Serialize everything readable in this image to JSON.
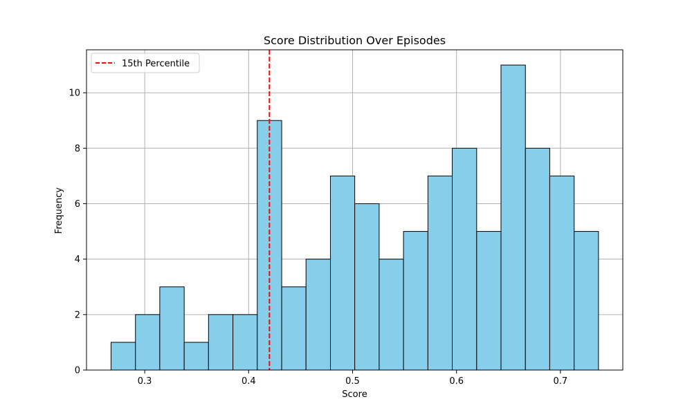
{
  "chart_data": {
    "type": "bar",
    "title": "Score Distribution Over Episodes",
    "xlabel": "Score",
    "ylabel": "Frequency",
    "xlim": [
      0.244,
      0.76
    ],
    "ylim": [
      0,
      11.55
    ],
    "bin_edges": [
      0.2676,
      0.2911,
      0.3145,
      0.338,
      0.3614,
      0.3849,
      0.4083,
      0.4318,
      0.4552,
      0.4787,
      0.5021,
      0.5256,
      0.549,
      0.5725,
      0.5959,
      0.6194,
      0.6428,
      0.6663,
      0.6897,
      0.7132,
      0.7366
    ],
    "values": [
      1,
      2,
      3,
      1,
      2,
      2,
      9,
      3,
      4,
      7,
      6,
      4,
      5,
      7,
      8,
      5,
      11,
      8,
      7,
      5
    ],
    "x_ticks": [
      0.3,
      0.4,
      0.5,
      0.6,
      0.7
    ],
    "x_tick_labels": [
      "0.3",
      "0.4",
      "0.5",
      "0.6",
      "0.7"
    ],
    "y_ticks": [
      0,
      2,
      4,
      6,
      8,
      10
    ],
    "y_tick_labels": [
      "0",
      "2",
      "4",
      "6",
      "8",
      "10"
    ],
    "grid": true,
    "bar_color": "#87ceeb",
    "bar_edge_color": "#000000",
    "percentile_line": {
      "x": 0.42,
      "label": "15th Percentile",
      "color": "#ff0000",
      "style": "dashed"
    },
    "legend": {
      "placement": "top-left",
      "entries": [
        "15th Percentile"
      ]
    }
  }
}
